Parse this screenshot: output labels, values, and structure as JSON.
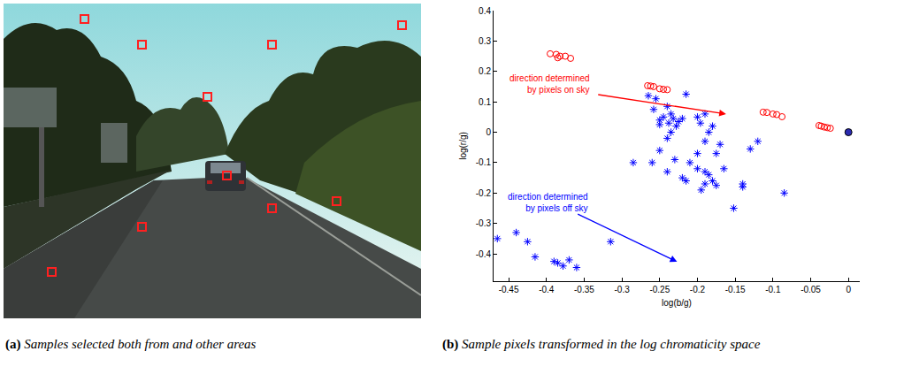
{
  "chart_data": {
    "type": "scatter",
    "xlabel": "log(b/g)",
    "ylabel": "log(r/g)",
    "xlim": [
      -0.47,
      0.015
    ],
    "ylim": [
      -0.49,
      0.4
    ],
    "xticks": [
      -0.45,
      -0.4,
      -0.35,
      -0.3,
      -0.25,
      -0.2,
      -0.15,
      -0.1,
      -0.05,
      0
    ],
    "yticks": [
      -0.4,
      -0.3,
      -0.2,
      -0.1,
      0,
      0.1,
      0.2,
      0.3,
      0.4
    ],
    "grid": false,
    "series": [
      {
        "color": "#ff0000",
        "marker": "circle-open",
        "x": [
          -0.395,
          -0.387,
          -0.382,
          -0.375,
          -0.368,
          -0.385,
          -0.266,
          -0.262,
          -0.258,
          -0.25,
          -0.245,
          -0.24,
          -0.113,
          -0.108,
          -0.1,
          -0.095,
          -0.088,
          -0.039,
          -0.036,
          -0.032,
          -0.028,
          -0.024
        ],
        "y": [
          0.258,
          0.256,
          0.25,
          0.25,
          0.243,
          0.245,
          0.153,
          0.152,
          0.15,
          0.143,
          0.141,
          0.14,
          0.066,
          0.065,
          0.06,
          0.058,
          0.051,
          0.022,
          0.02,
          0.017,
          0.015,
          0.013
        ]
      },
      {
        "color": "#0000ff",
        "marker": "asterisk-open",
        "x": [
          -0.265,
          -0.255,
          -0.215,
          -0.258,
          -0.24,
          -0.235,
          -0.25,
          -0.245,
          -0.238,
          -0.232,
          -0.225,
          -0.22,
          -0.228,
          -0.25,
          -0.24,
          -0.235,
          -0.2,
          -0.196,
          -0.18,
          -0.185,
          -0.19,
          -0.17,
          -0.175,
          -0.2,
          -0.21,
          -0.23,
          -0.26,
          -0.285,
          -0.24,
          -0.22,
          -0.215,
          -0.2,
          -0.19,
          -0.185,
          -0.18,
          -0.19,
          -0.195,
          -0.175,
          -0.165,
          -0.14,
          -0.14,
          -0.152,
          -0.085,
          -0.13,
          -0.12,
          -0.19,
          -0.25,
          -0.465,
          -0.44,
          -0.425,
          -0.415,
          -0.39,
          -0.385,
          -0.378,
          -0.37,
          -0.36,
          -0.315
        ],
        "y": [
          0.12,
          0.11,
          0.125,
          0.075,
          0.085,
          0.06,
          0.04,
          0.05,
          0.03,
          0.045,
          0.035,
          0.045,
          0.02,
          0.025,
          -0.02,
          0.0,
          0.05,
          0.03,
          0.02,
          0.0,
          -0.03,
          -0.04,
          -0.07,
          -0.07,
          -0.1,
          -0.09,
          -0.1,
          -0.1,
          -0.13,
          -0.15,
          -0.16,
          -0.12,
          -0.13,
          -0.14,
          -0.16,
          -0.17,
          -0.19,
          -0.175,
          -0.12,
          -0.17,
          -0.18,
          -0.25,
          -0.2,
          -0.055,
          -0.03,
          0.06,
          -0.06,
          -0.35,
          -0.33,
          -0.36,
          -0.41,
          -0.425,
          -0.43,
          -0.44,
          -0.42,
          -0.445,
          -0.36
        ]
      },
      {
        "color": "#2a2ab0",
        "marker": "circle",
        "x": [
          0
        ],
        "y": [
          0
        ]
      }
    ],
    "annotations": [
      {
        "lines": [
          "direction determined",
          "by pixels on sky"
        ],
        "color": "#ff0000",
        "x": -0.34,
        "y": 0.16,
        "arrow_from": [
          -0.335,
          0.125
        ],
        "arrow_to": [
          -0.162,
          0.06
        ]
      },
      {
        "lines": [
          "direction determined",
          "by pixels off sky"
        ],
        "color": "#0000ff",
        "x": -0.342,
        "y": -0.23,
        "arrow_from": [
          -0.362,
          -0.265
        ],
        "arrow_to": [
          -0.227,
          -0.426
        ]
      }
    ]
  },
  "panels": [
    {
      "label": "(a)",
      "caption": "Samples selected both from and other areas"
    },
    {
      "label": "(b)",
      "caption": "Sample pixels transformed in the log chromaticity space"
    }
  ]
}
